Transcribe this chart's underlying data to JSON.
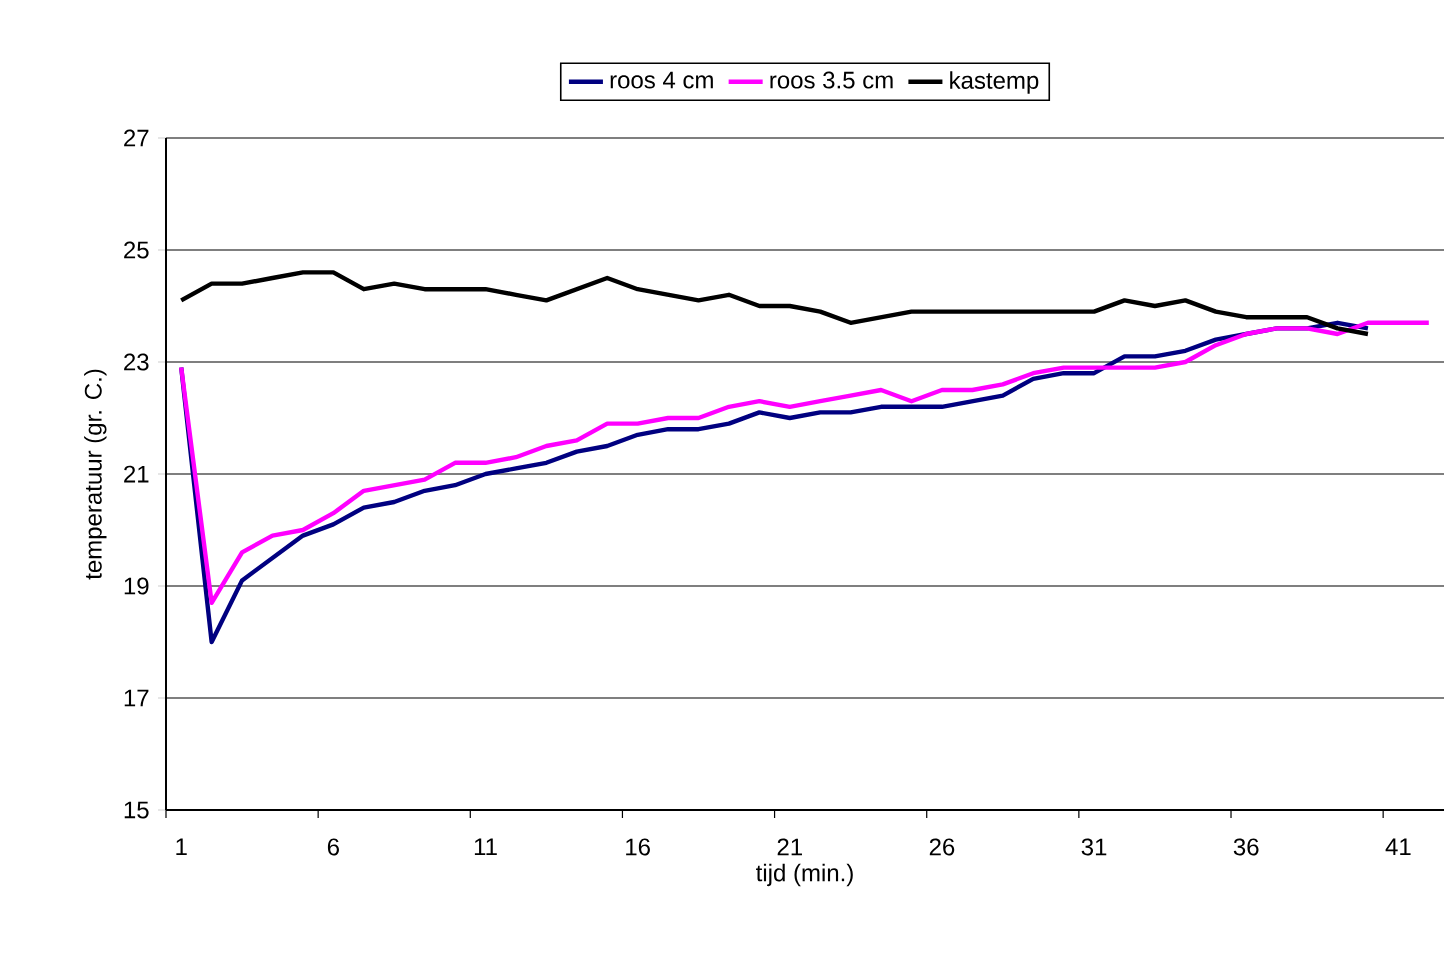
{
  "chart_data": {
    "type": "line",
    "xlabel": "tijd (min.)",
    "ylabel": "temperatuur (gr. C.)",
    "categories": [
      "1",
      null,
      null,
      null,
      null,
      "6",
      null,
      null,
      null,
      null,
      "11",
      null,
      null,
      null,
      null,
      "16",
      null,
      null,
      null,
      null,
      "21",
      null,
      null,
      null,
      null,
      "26",
      null,
      null,
      null,
      null,
      "31",
      null,
      null,
      null,
      null,
      "36",
      null,
      null,
      null,
      null,
      "41",
      null
    ],
    "series": [
      {
        "name": "roos 4 cm",
        "color": "#000080",
        "values": [
          22.9,
          18.0,
          19.1,
          19.5,
          19.9,
          20.1,
          20.4,
          20.5,
          20.7,
          20.8,
          21.0,
          21.1,
          21.2,
          21.4,
          21.5,
          21.7,
          21.8,
          21.8,
          21.9,
          22.1,
          22.0,
          22.1,
          22.1,
          22.2,
          22.2,
          22.2,
          22.3,
          22.4,
          22.7,
          22.8,
          22.8,
          23.1,
          23.1,
          23.2,
          23.4,
          23.5,
          23.6,
          23.6,
          23.7,
          23.6,
          null,
          null
        ]
      },
      {
        "name": "roos 3.5 cm",
        "color": "#ff00ff",
        "values": [
          22.9,
          18.7,
          19.6,
          19.9,
          20.0,
          20.3,
          20.7,
          20.8,
          20.9,
          21.2,
          21.2,
          21.3,
          21.5,
          21.6,
          21.9,
          21.9,
          22.0,
          22.0,
          22.2,
          22.3,
          22.2,
          22.3,
          22.4,
          22.5,
          22.3,
          22.5,
          22.5,
          22.6,
          22.8,
          22.9,
          22.9,
          22.9,
          22.9,
          23.0,
          23.3,
          23.5,
          23.6,
          23.6,
          23.5,
          23.7,
          23.7,
          23.7
        ]
      },
      {
        "name": "kastemp",
        "color": "#000000",
        "values": [
          24.1,
          24.4,
          24.4,
          24.5,
          24.6,
          24.6,
          24.3,
          24.4,
          24.3,
          24.3,
          24.3,
          24.2,
          24.1,
          24.3,
          24.5,
          24.3,
          24.2,
          24.1,
          24.2,
          24.0,
          24.0,
          23.9,
          23.7,
          23.8,
          23.9,
          23.9,
          23.9,
          23.9,
          23.9,
          23.9,
          23.9,
          24.1,
          24.0,
          24.1,
          23.9,
          23.8,
          23.8,
          23.8,
          23.6,
          23.5,
          null,
          null
        ]
      }
    ],
    "ylim": [
      15,
      27
    ],
    "yticks": [
      15,
      17,
      19,
      21,
      23,
      25,
      27
    ],
    "grid": "y",
    "legend": "top",
    "marker": "none",
    "line_style": "solid"
  }
}
